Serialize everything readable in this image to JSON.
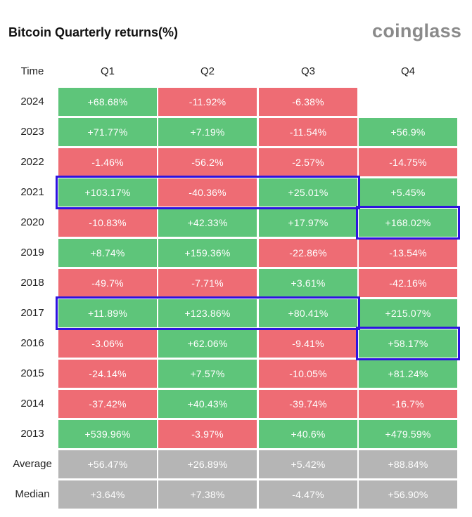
{
  "header": {
    "title": "Bitcoin Quarterly returns(%)",
    "logo": "coinglass"
  },
  "colors": {
    "positive": "#5ec57a",
    "negative": "#ee6c74",
    "summary": "#b5b5b5",
    "highlight": "#2d13e0"
  },
  "chart_data": {
    "type": "table",
    "title": "Bitcoin Quarterly returns(%)",
    "columns": [
      "Time",
      "Q1",
      "Q2",
      "Q3",
      "Q4"
    ],
    "rows": [
      {
        "label": "2024",
        "kind": "year",
        "values": [
          "+68.68%",
          "-11.92%",
          "-6.38%",
          null
        ]
      },
      {
        "label": "2023",
        "kind": "year",
        "values": [
          "+71.77%",
          "+7.19%",
          "-11.54%",
          "+56.9%"
        ]
      },
      {
        "label": "2022",
        "kind": "year",
        "values": [
          "-1.46%",
          "-56.2%",
          "-2.57%",
          "-14.75%"
        ]
      },
      {
        "label": "2021",
        "kind": "year",
        "values": [
          "+103.17%",
          "-40.36%",
          "+25.01%",
          "+5.45%"
        ]
      },
      {
        "label": "2020",
        "kind": "year",
        "values": [
          "-10.83%",
          "+42.33%",
          "+17.97%",
          "+168.02%"
        ]
      },
      {
        "label": "2019",
        "kind": "year",
        "values": [
          "+8.74%",
          "+159.36%",
          "-22.86%",
          "-13.54%"
        ]
      },
      {
        "label": "2018",
        "kind": "year",
        "values": [
          "-49.7%",
          "-7.71%",
          "+3.61%",
          "-42.16%"
        ]
      },
      {
        "label": "2017",
        "kind": "year",
        "values": [
          "+11.89%",
          "+123.86%",
          "+80.41%",
          "+215.07%"
        ]
      },
      {
        "label": "2016",
        "kind": "year",
        "values": [
          "-3.06%",
          "+62.06%",
          "-9.41%",
          "+58.17%"
        ]
      },
      {
        "label": "2015",
        "kind": "year",
        "values": [
          "-24.14%",
          "+7.57%",
          "-10.05%",
          "+81.24%"
        ]
      },
      {
        "label": "2014",
        "kind": "year",
        "values": [
          "-37.42%",
          "+40.43%",
          "-39.74%",
          "-16.7%"
        ]
      },
      {
        "label": "2013",
        "kind": "year",
        "values": [
          "+539.96%",
          "-3.97%",
          "+40.6%",
          "+479.59%"
        ]
      },
      {
        "label": "Average",
        "kind": "summary",
        "values": [
          "+56.47%",
          "+26.89%",
          "+5.42%",
          "+88.84%"
        ]
      },
      {
        "label": "Median",
        "kind": "summary",
        "values": [
          "+3.64%",
          "+7.38%",
          "-4.47%",
          "+56.90%"
        ]
      }
    ],
    "highlights": [
      {
        "row": "2021",
        "from": "Q1",
        "to": "Q3"
      },
      {
        "row": "2020",
        "from": "Q4",
        "to": "Q4"
      },
      {
        "row": "2017",
        "from": "Q1",
        "to": "Q3"
      },
      {
        "row": "2016",
        "from": "Q4",
        "to": "Q4"
      }
    ]
  }
}
